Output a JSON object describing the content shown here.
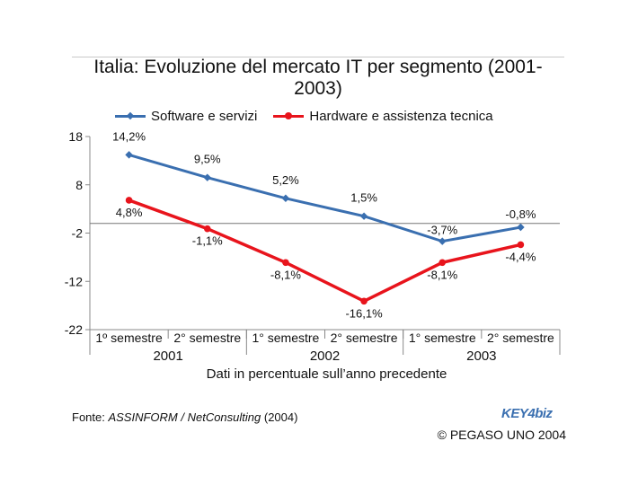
{
  "chart_data": {
    "type": "line",
    "title": "Italia: Evoluzione del mercato IT per segmento (2001-2003)",
    "xlabel": "Dati in percentuale sull’anno precedente",
    "categories": [
      "1º semestre",
      "2° semestre",
      "1° semestre",
      "2° semestre",
      "1° semestre",
      "2° semestre"
    ],
    "groups": [
      "2001",
      "2002",
      "2003"
    ],
    "ylim": [
      -22,
      18
    ],
    "yticks": [
      "18",
      "8",
      "-2",
      "-12",
      "-22"
    ],
    "ytick_values": [
      18,
      8,
      -2,
      -12,
      -22
    ],
    "series": [
      {
        "name": "Software e servizi",
        "color": "#3a6fb0",
        "marker": "diamond",
        "values": [
          14.2,
          9.5,
          5.2,
          1.5,
          -3.7,
          -0.8
        ],
        "labels": [
          "14,2%",
          "9,5%",
          "5,2%",
          "1,5%",
          "-3,7%",
          "-0,8%"
        ]
      },
      {
        "name": "Hardware e assistenza tecnica",
        "color": "#e8141c",
        "marker": "circle",
        "values": [
          4.8,
          -1.1,
          -8.1,
          -16.1,
          -8.1,
          -4.4
        ],
        "labels": [
          "4,8%",
          "-1,1%",
          "-8,1%",
          "-16,1%",
          "-8,1%",
          "-4,4%"
        ]
      }
    ],
    "legend": "top"
  },
  "footer": {
    "source_prefix": "Fonte: ",
    "source_name": "ASSINFORM / NetConsulting",
    "source_year": " (2004)",
    "copyright": "© PEGASO UNO 2004"
  },
  "logo": {
    "part1": "KEY4",
    "part2": "biz"
  }
}
